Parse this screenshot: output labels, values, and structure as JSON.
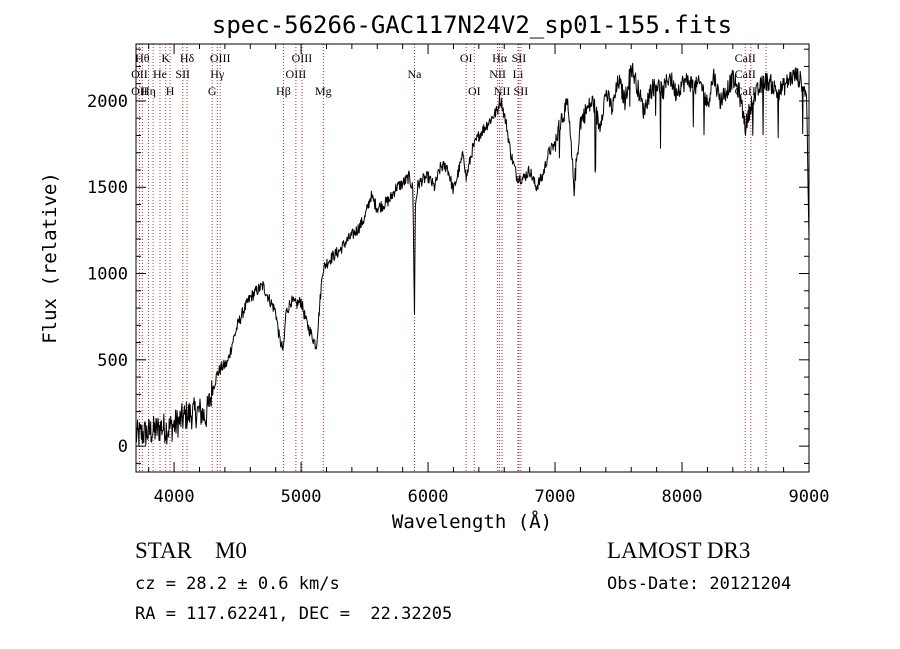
{
  "chart_data": {
    "type": "line",
    "title": "spec-56266-GAC117N24V2_sp01-155.fits",
    "xlabel": "Wavelength (Å)",
    "ylabel": "Flux (relative)",
    "xlim": [
      3700,
      9000
    ],
    "ylim": [
      -150,
      2330
    ],
    "xticks": [
      4000,
      5000,
      6000,
      7000,
      8000,
      9000
    ],
    "yticks": [
      0,
      500,
      1000,
      1500,
      2000
    ],
    "grid": false,
    "series": [
      {
        "x": [
          3700,
          3750,
          3800,
          3850,
          3900,
          3950,
          4000,
          4050,
          4100,
          4150,
          4200,
          4250,
          4300,
          4340,
          4380,
          4420,
          4460,
          4500,
          4550,
          4600,
          4650,
          4700,
          4750,
          4800,
          4830,
          4861,
          4880,
          4920,
          4960,
          5000,
          5040,
          5080,
          5120,
          5170,
          5200,
          5250,
          5300,
          5350,
          5400,
          5450,
          5500,
          5550,
          5600,
          5650,
          5700,
          5750,
          5800,
          5850,
          5880,
          5893,
          5900,
          5920,
          5950,
          6000,
          6050,
          6100,
          6150,
          6200,
          6250,
          6280,
          6300,
          6350,
          6400,
          6450,
          6500,
          6550,
          6563,
          6580,
          6620,
          6650,
          6700,
          6750,
          6800,
          6850,
          6900,
          6950,
          7000,
          7050,
          7100,
          7150,
          7200,
          7250,
          7300,
          7350,
          7400,
          7450,
          7500,
          7550,
          7600,
          7650,
          7700,
          7750,
          7800,
          7850,
          7900,
          7950,
          8000,
          8050,
          8100,
          8150,
          8200,
          8250,
          8300,
          8350,
          8400,
          8450,
          8500,
          8550,
          8600,
          8650,
          8700,
          8750,
          8800,
          8850,
          8900,
          8950,
          8980,
          9000
        ],
        "y": [
          60,
          70,
          80,
          90,
          110,
          100,
          120,
          150,
          180,
          190,
          200,
          170,
          320,
          420,
          460,
          480,
          600,
          700,
          790,
          860,
          900,
          930,
          850,
          780,
          620,
          550,
          770,
          840,
          820,
          840,
          720,
          650,
          580,
          1020,
          1060,
          1100,
          1130,
          1180,
          1220,
          1260,
          1320,
          1450,
          1380,
          1400,
          1430,
          1500,
          1520,
          1560,
          1490,
          780,
          1400,
          1510,
          1540,
          1560,
          1500,
          1620,
          1620,
          1480,
          1620,
          1700,
          1550,
          1720,
          1800,
          1850,
          1900,
          1950,
          2010,
          1990,
          1850,
          1700,
          1560,
          1550,
          1600,
          1500,
          1560,
          1700,
          1750,
          1900,
          1980,
          1500,
          1880,
          1950,
          2000,
          1850,
          2050,
          1950,
          2120,
          2000,
          2200,
          2080,
          1940,
          2060,
          2100,
          2050,
          2150,
          2050,
          2100,
          2120,
          2080,
          2100,
          1980,
          2150,
          2000,
          2060,
          2130,
          2050,
          1850,
          2000,
          2060,
          2120,
          2100,
          2050,
          2080,
          2130,
          2150,
          2100,
          2050,
          1200
        ]
      }
    ],
    "lines": [
      {
        "wavelength": 3750,
        "rows": [
          0
        ],
        "label": "Hθ"
      },
      {
        "wavelength": 3727,
        "rows": [
          1
        ],
        "label": "OII"
      },
      {
        "wavelength": 3727,
        "rows": [
          2
        ],
        "label": "OII"
      },
      {
        "wavelength": 3798,
        "rows": [
          2
        ],
        "label": "Hη"
      },
      {
        "wavelength": 3835,
        "rows": [],
        "label": ""
      },
      {
        "wavelength": 3889,
        "rows": [
          1
        ],
        "label": "He"
      },
      {
        "wavelength": 3934,
        "rows": [
          0
        ],
        "label": "K"
      },
      {
        "wavelength": 3968,
        "rows": [
          2
        ],
        "label": "H"
      },
      {
        "wavelength": 4068,
        "rows": [
          1
        ],
        "label": "SII"
      },
      {
        "wavelength": 4102,
        "rows": [
          0
        ],
        "label": "Hδ"
      },
      {
        "wavelength": 4300,
        "rows": [
          2
        ],
        "label": "G"
      },
      {
        "wavelength": 4340,
        "rows": [
          1
        ],
        "label": "Hγ"
      },
      {
        "wavelength": 4363,
        "rows": [
          0
        ],
        "label": "OIII"
      },
      {
        "wavelength": 4861,
        "rows": [
          2
        ],
        "label": "Hβ"
      },
      {
        "wavelength": 4959,
        "rows": [
          1
        ],
        "label": "OIII"
      },
      {
        "wavelength": 5007,
        "rows": [
          0
        ],
        "label": "OIII"
      },
      {
        "wavelength": 5175,
        "rows": [
          2
        ],
        "label": "Mg"
      },
      {
        "wavelength": 5893,
        "rows": [
          1
        ],
        "label": "Na"
      },
      {
        "wavelength": 6300,
        "rows": [
          0
        ],
        "label": "OI"
      },
      {
        "wavelength": 6364,
        "rows": [
          2
        ],
        "label": "OI"
      },
      {
        "wavelength": 6548,
        "rows": [
          1
        ],
        "label": "NII"
      },
      {
        "wavelength": 6563,
        "rows": [
          0
        ],
        "label": "Hα"
      },
      {
        "wavelength": 6583,
        "rows": [
          2
        ],
        "label": "NII"
      },
      {
        "wavelength": 6708,
        "rows": [
          1
        ],
        "label": "Li"
      },
      {
        "wavelength": 6716,
        "rows": [
          0
        ],
        "label": "SII"
      },
      {
        "wavelength": 6731,
        "rows": [
          2
        ],
        "label": "SII"
      },
      {
        "wavelength": 8498,
        "rows": [
          0,
          1,
          2
        ],
        "label": "CaII"
      },
      {
        "wavelength": 8542,
        "rows": [],
        "label": ""
      },
      {
        "wavelength": 8662,
        "rows": [],
        "label": ""
      }
    ]
  },
  "info": {
    "classification": "STAR    M0",
    "survey": "LAMOST DR3",
    "redshift": "cz = 28.2 ± 0.6 km/s",
    "obs_date": "Obs-Date: 20121204",
    "coords": "RA = 117.62241, DEC =  22.32205"
  }
}
